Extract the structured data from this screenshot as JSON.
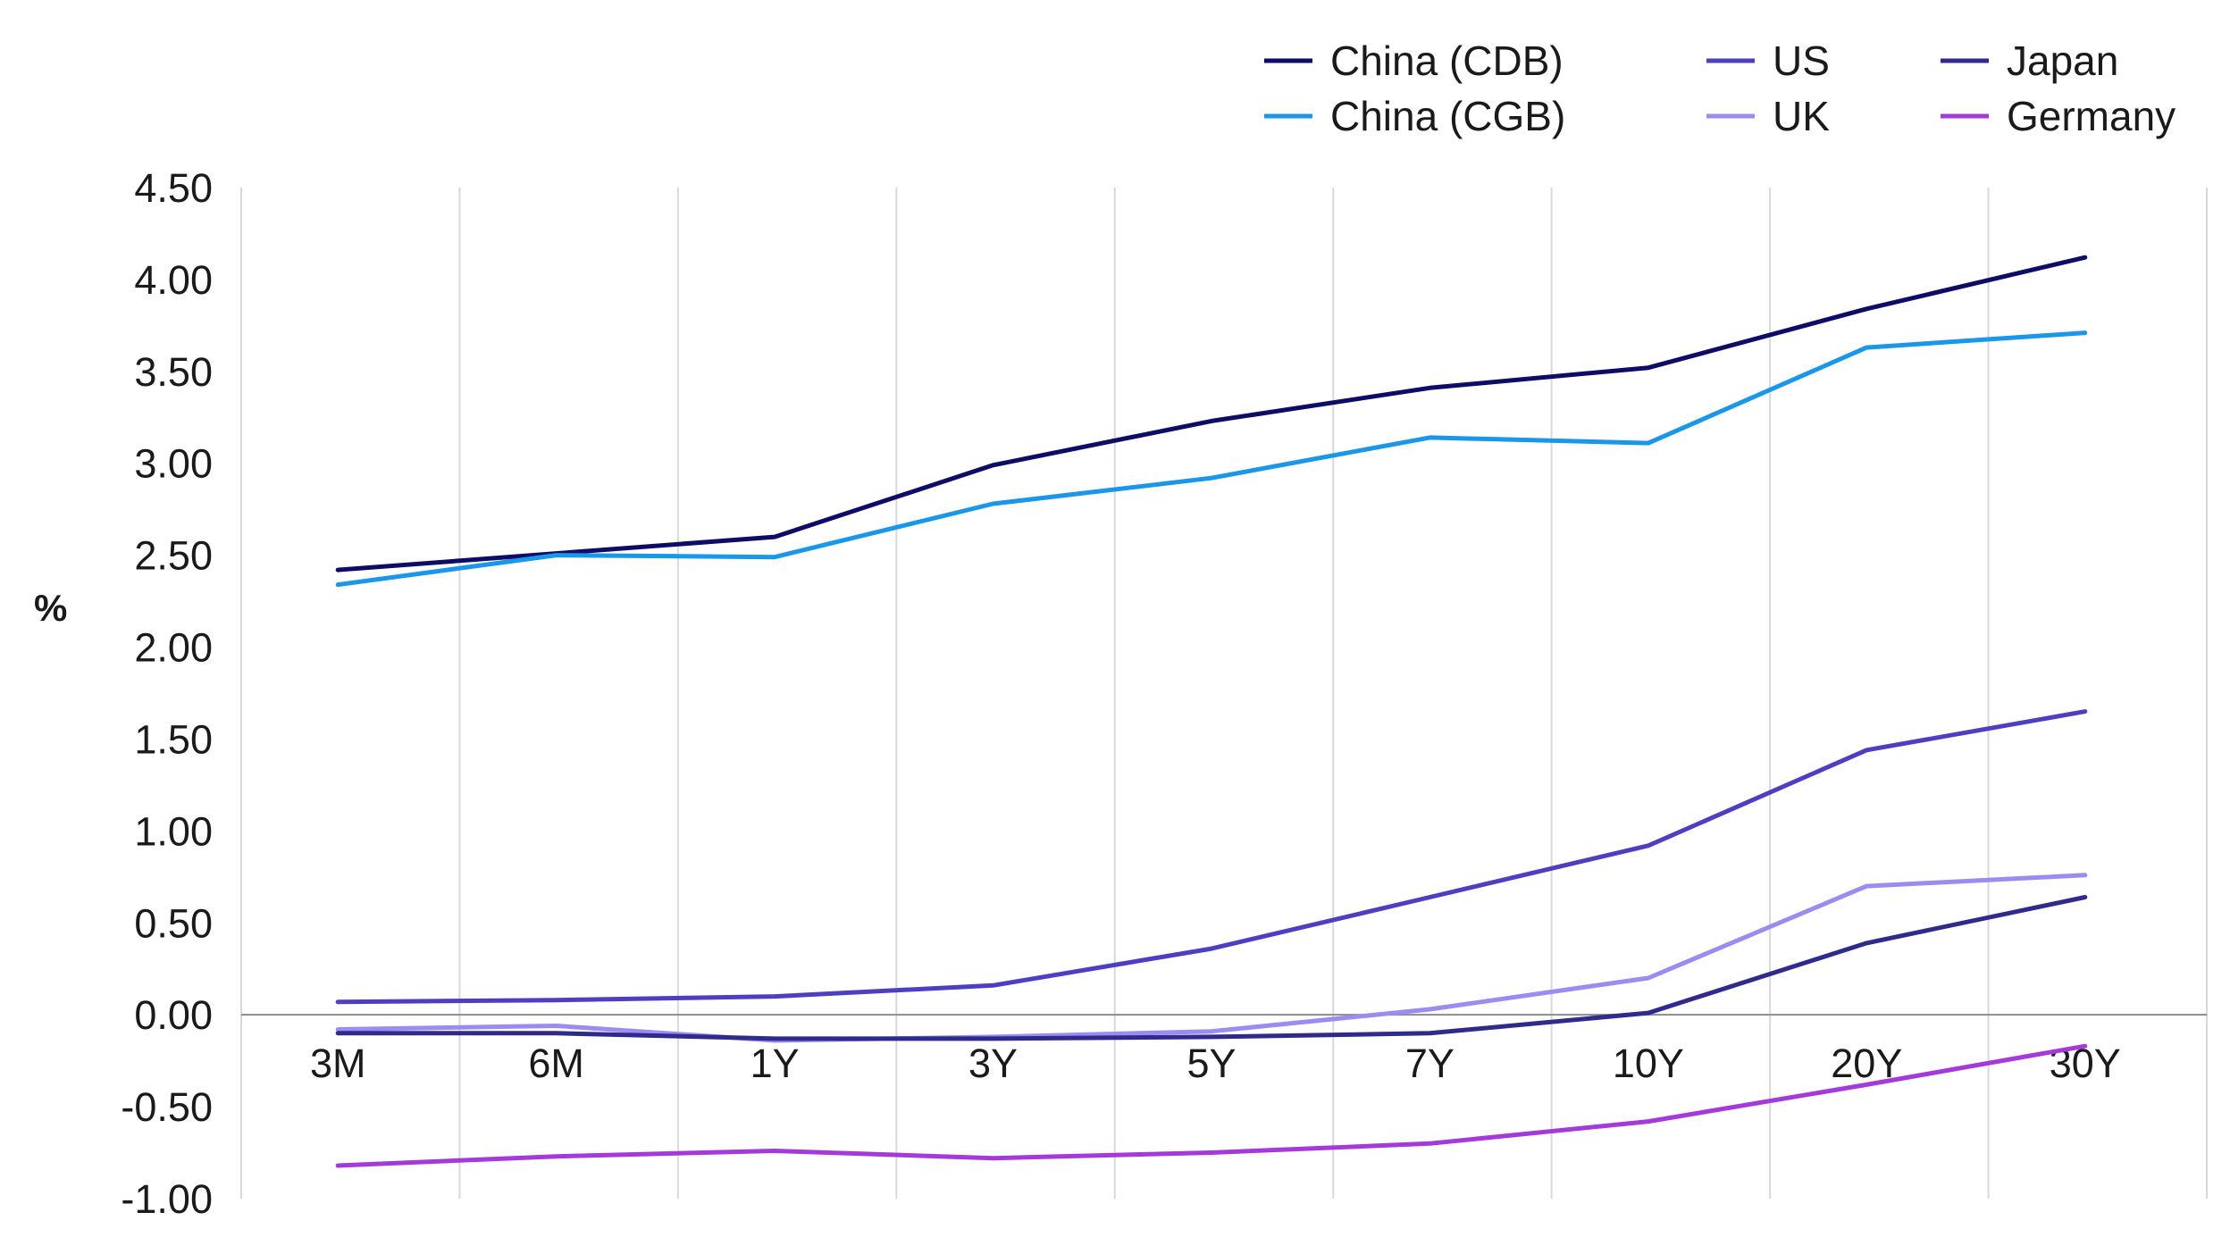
{
  "chart_data": {
    "type": "line",
    "title": "",
    "xlabel": "",
    "ylabel": "%",
    "categories": [
      "3M",
      "6M",
      "1Y",
      "3Y",
      "5Y",
      "7Y",
      "10Y",
      "20Y",
      "30Y"
    ],
    "ylim": [
      -1.0,
      4.5
    ],
    "yticks": [
      "4.50",
      "4.00",
      "3.50",
      "3.00",
      "2.50",
      "2.00",
      "1.50",
      "1.00",
      "0.50",
      "0.00",
      "-0.50",
      "-1.00"
    ],
    "grid": "vertical",
    "legend_position": "top-right",
    "series": [
      {
        "name": "China (CDB)",
        "color": "#0d0c66",
        "values": [
          2.42,
          2.51,
          2.6,
          2.99,
          3.23,
          3.41,
          3.52,
          3.84,
          4.12
        ]
      },
      {
        "name": "China (CGB)",
        "color": "#1a97e8",
        "values": [
          2.34,
          2.5,
          2.49,
          2.78,
          2.92,
          3.14,
          3.11,
          3.63,
          3.71
        ]
      },
      {
        "name": "US",
        "color": "#4e3fc2",
        "values": [
          0.07,
          0.08,
          0.1,
          0.16,
          0.36,
          0.64,
          0.92,
          1.44,
          1.65
        ]
      },
      {
        "name": "UK",
        "color": "#9a8cf0",
        "values": [
          -0.08,
          -0.06,
          -0.14,
          -0.12,
          -0.09,
          0.03,
          0.2,
          0.7,
          0.76
        ]
      },
      {
        "name": "Japan",
        "color": "#302a8c",
        "values": [
          -0.1,
          -0.1,
          -0.13,
          -0.13,
          -0.12,
          -0.1,
          0.01,
          0.39,
          0.64
        ]
      },
      {
        "name": "Germany",
        "color": "#a33ad9",
        "values": [
          -0.82,
          -0.77,
          -0.74,
          -0.78,
          -0.75,
          -0.7,
          -0.58,
          -0.38,
          -0.17
        ]
      }
    ]
  }
}
